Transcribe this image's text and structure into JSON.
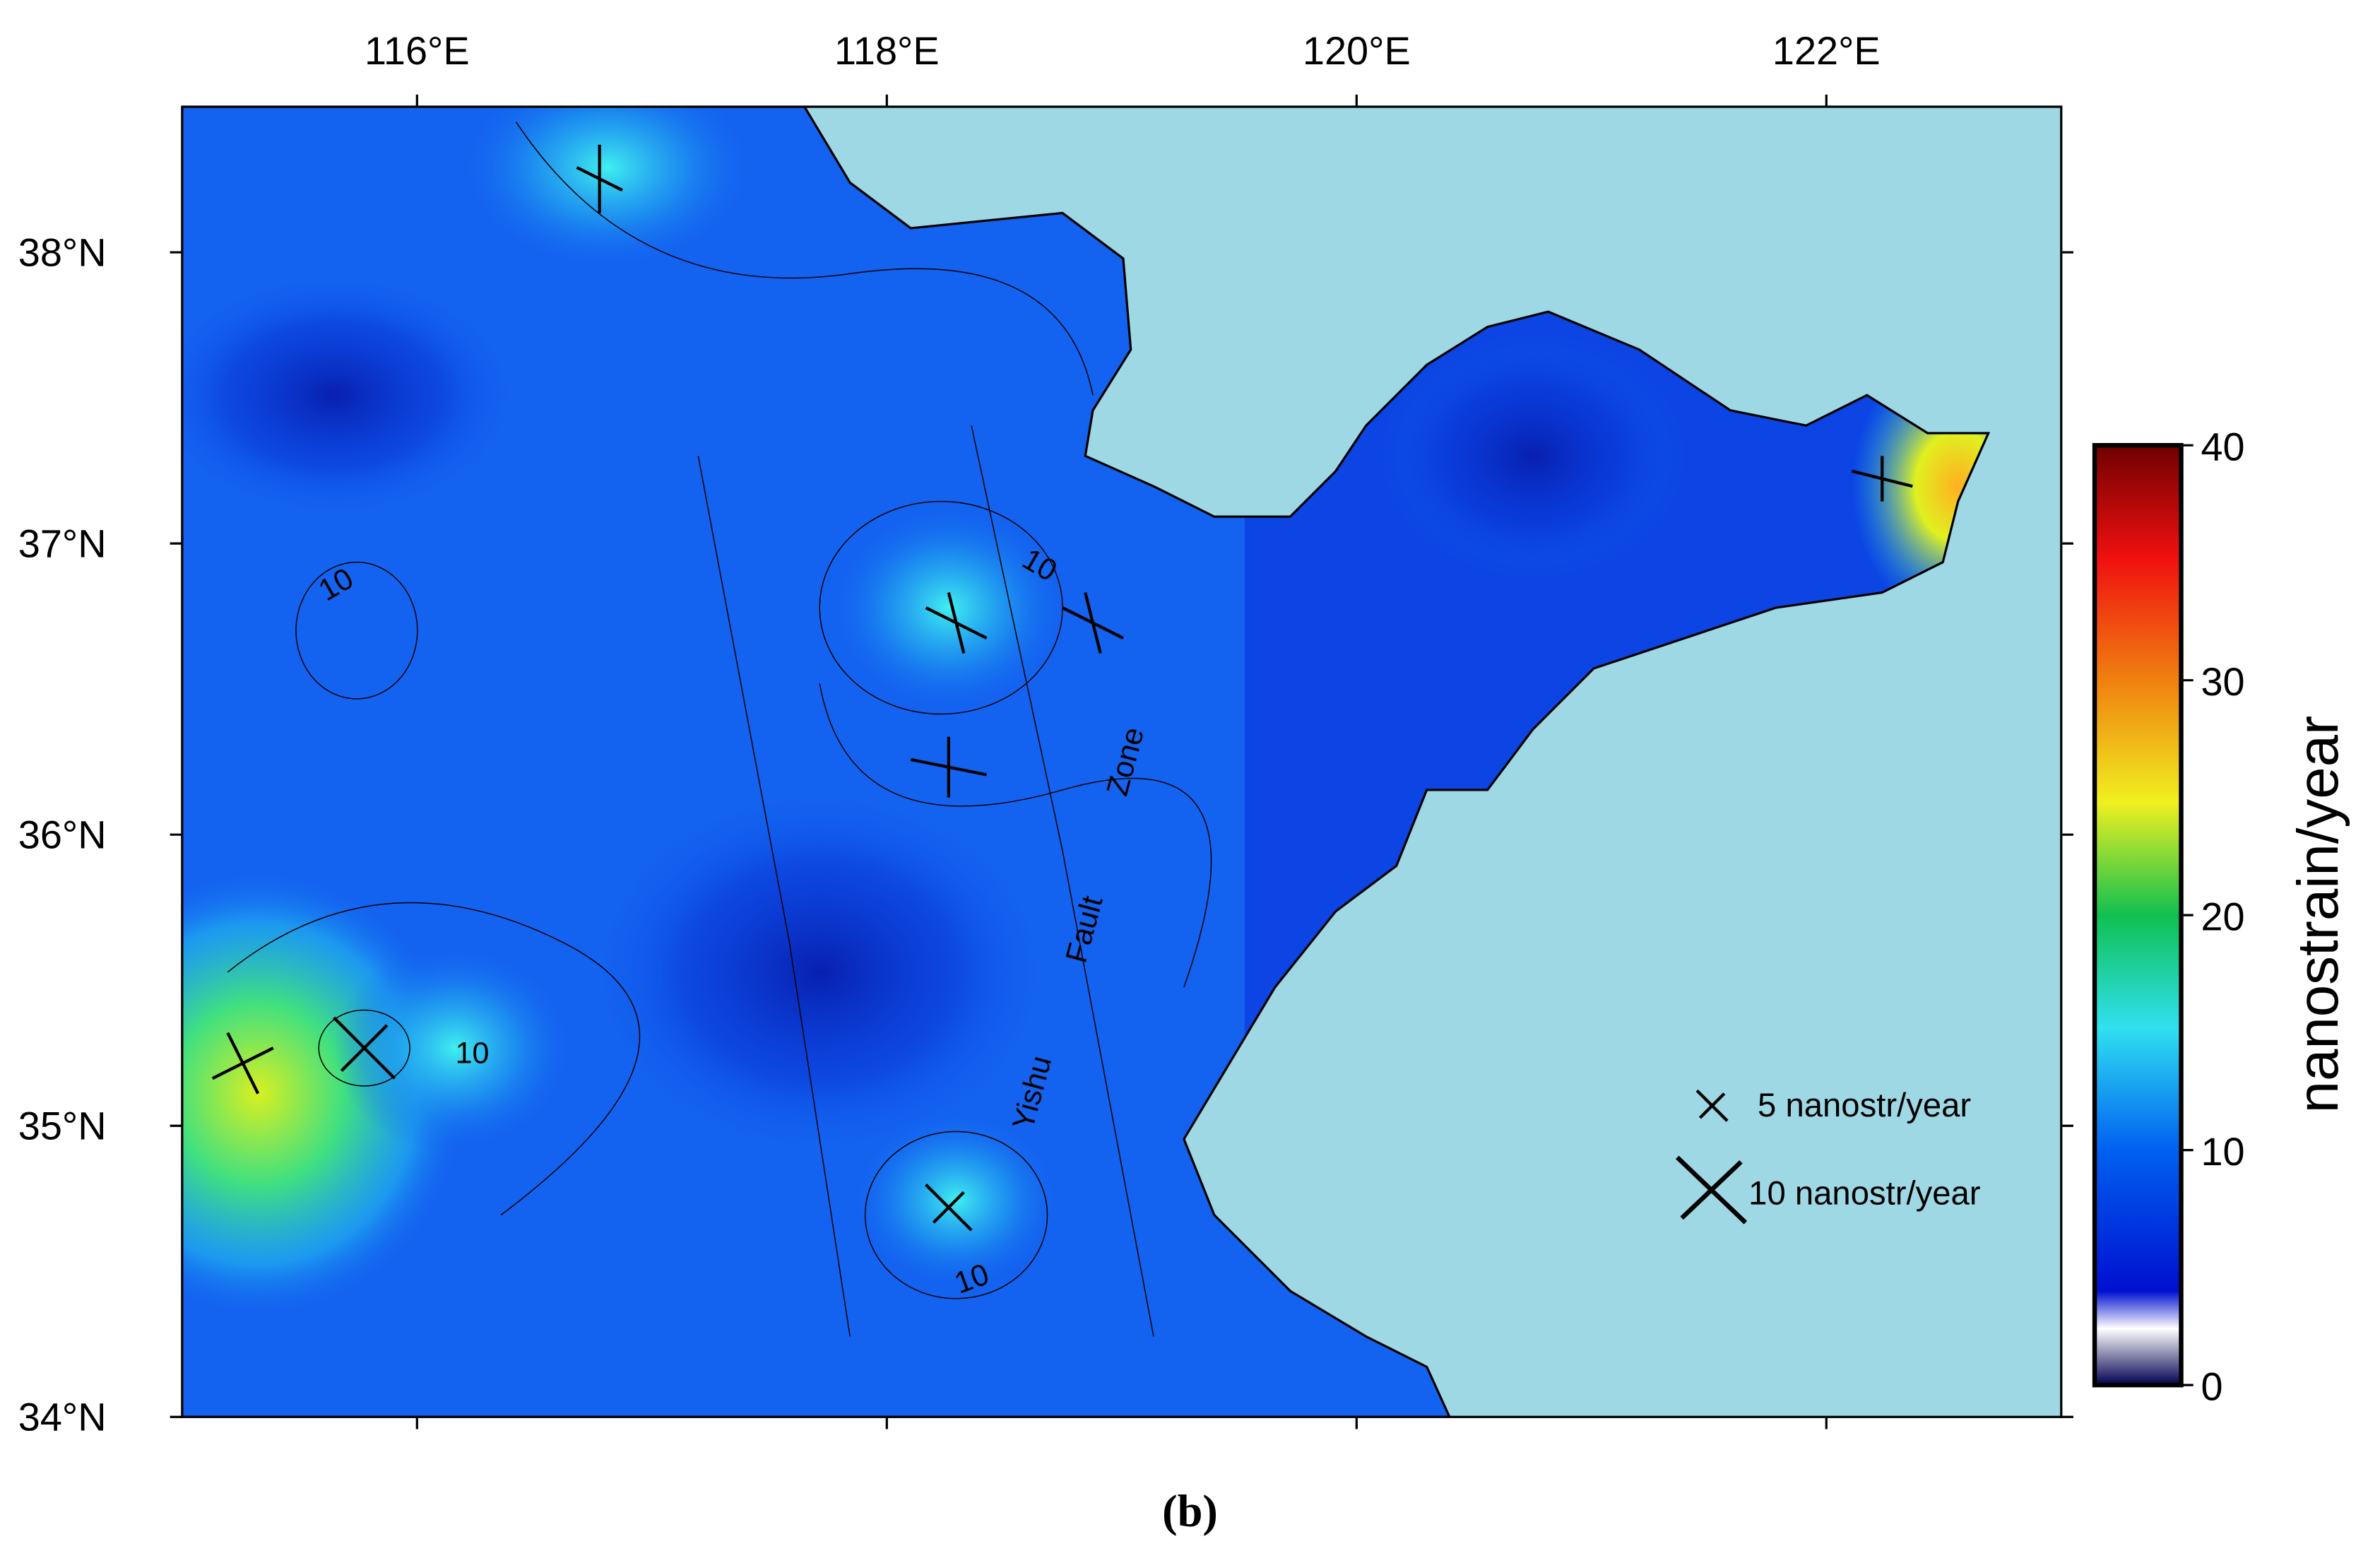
{
  "map": {
    "lon_range": [
      115,
      123
    ],
    "lat_range": [
      34,
      38.5
    ],
    "lon_ticks": [
      {
        "value": 116,
        "label": "116°E"
      },
      {
        "value": 118,
        "label": "118°E"
      },
      {
        "value": 120,
        "label": "120°E"
      },
      {
        "value": 122,
        "label": "122°E"
      }
    ],
    "lat_ticks": [
      {
        "value": 34,
        "label": "34°N"
      },
      {
        "value": 35,
        "label": "35°N"
      },
      {
        "value": 36,
        "label": "36°N"
      },
      {
        "value": 37,
        "label": "37°N"
      },
      {
        "value": 38,
        "label": "38°N"
      }
    ],
    "colorbar": {
      "title": "nanostrain/year",
      "range": [
        0,
        40
      ],
      "ticks": [
        0,
        10,
        20,
        30,
        40
      ]
    },
    "legend": [
      "5 nanostr/year",
      "10 nanostr/year"
    ],
    "contour_labels": [
      "10",
      "10",
      "10",
      "10"
    ],
    "fault_label": [
      "Yishu",
      "Fault",
      "Zone"
    ]
  },
  "caption": "(b)"
}
